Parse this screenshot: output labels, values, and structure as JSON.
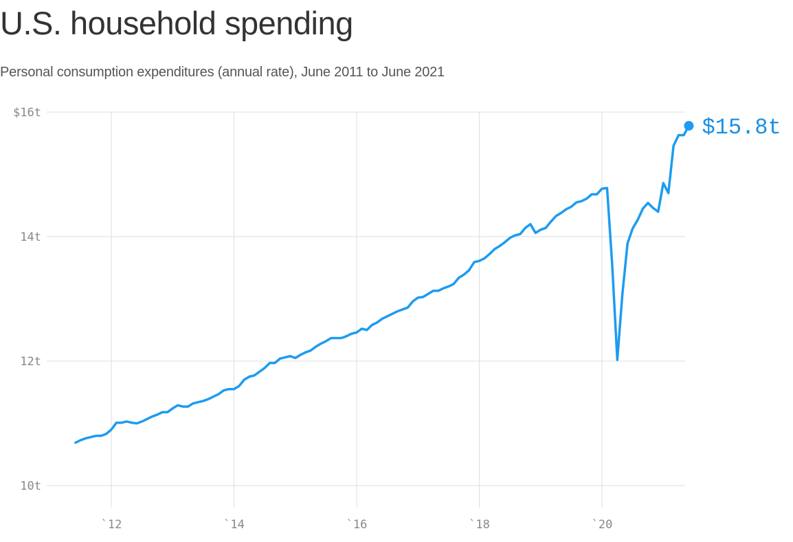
{
  "title": "U.S. household spending",
  "subtitle": "Personal consumption expenditures (annual rate), June 2011 to June 2021",
  "colors": {
    "line": "#1d9bf0",
    "label": "#1a8fe3",
    "grid": "#dddddd",
    "tick": "#888888"
  },
  "chart_data": {
    "type": "line",
    "title": "U.S. household spending",
    "subtitle": "Personal consumption expenditures (annual rate), June 2011 to June 2021",
    "xlabel": "",
    "ylabel": "",
    "xlim": [
      2011.45,
      2021.45
    ],
    "ylim": [
      10,
      16
    ],
    "grid": true,
    "y_ticks": [
      {
        "value": 10,
        "label": "10t"
      },
      {
        "value": 12,
        "label": "12t"
      },
      {
        "value": 14,
        "label": "14t"
      },
      {
        "value": 16,
        "label": "$16t"
      }
    ],
    "x_ticks": [
      {
        "value": 2012,
        "label": "`12"
      },
      {
        "value": 2014,
        "label": "`14"
      },
      {
        "value": 2016,
        "label": "`16"
      },
      {
        "value": 2018,
        "label": "`18"
      },
      {
        "value": 2020,
        "label": "`20"
      }
    ],
    "end_label": "$15.8t",
    "series": [
      {
        "points": [
          [
            "2011-06",
            10.69
          ],
          [
            "2011-07",
            10.73
          ],
          [
            "2011-08",
            10.76
          ],
          [
            "2011-09",
            10.78
          ],
          [
            "2011-10",
            10.8
          ],
          [
            "2011-11",
            10.8
          ],
          [
            "2011-12",
            10.83
          ],
          [
            "2012-01",
            10.9
          ],
          [
            "2012-02",
            11.01
          ],
          [
            "2012-03",
            11.01
          ],
          [
            "2012-04",
            11.03
          ],
          [
            "2012-05",
            11.01
          ],
          [
            "2012-06",
            11.0
          ],
          [
            "2012-07",
            11.03
          ],
          [
            "2012-08",
            11.07
          ],
          [
            "2012-09",
            11.11
          ],
          [
            "2012-10",
            11.14
          ],
          [
            "2012-11",
            11.18
          ],
          [
            "2012-12",
            11.18
          ],
          [
            "2013-01",
            11.24
          ],
          [
            "2013-02",
            11.29
          ],
          [
            "2013-03",
            11.27
          ],
          [
            "2013-04",
            11.27
          ],
          [
            "2013-05",
            11.32
          ],
          [
            "2013-06",
            11.34
          ],
          [
            "2013-07",
            11.36
          ],
          [
            "2013-08",
            11.39
          ],
          [
            "2013-09",
            11.43
          ],
          [
            "2013-10",
            11.47
          ],
          [
            "2013-11",
            11.53
          ],
          [
            "2013-12",
            11.55
          ],
          [
            "2014-01",
            11.55
          ],
          [
            "2014-02",
            11.6
          ],
          [
            "2014-03",
            11.7
          ],
          [
            "2014-04",
            11.75
          ],
          [
            "2014-05",
            11.77
          ],
          [
            "2014-06",
            11.83
          ],
          [
            "2014-07",
            11.89
          ],
          [
            "2014-08",
            11.97
          ],
          [
            "2014-09",
            11.97
          ],
          [
            "2014-10",
            12.04
          ],
          [
            "2014-11",
            12.06
          ],
          [
            "2014-12",
            12.08
          ],
          [
            "2015-01",
            12.05
          ],
          [
            "2015-02",
            12.1
          ],
          [
            "2015-03",
            12.14
          ],
          [
            "2015-04",
            12.17
          ],
          [
            "2015-05",
            12.23
          ],
          [
            "2015-06",
            12.28
          ],
          [
            "2015-07",
            12.32
          ],
          [
            "2015-08",
            12.37
          ],
          [
            "2015-09",
            12.37
          ],
          [
            "2015-10",
            12.37
          ],
          [
            "2015-11",
            12.4
          ],
          [
            "2015-12",
            12.44
          ],
          [
            "2016-01",
            12.46
          ],
          [
            "2016-02",
            12.52
          ],
          [
            "2016-03",
            12.5
          ],
          [
            "2016-04",
            12.58
          ],
          [
            "2016-05",
            12.62
          ],
          [
            "2016-06",
            12.68
          ],
          [
            "2016-07",
            12.72
          ],
          [
            "2016-08",
            12.76
          ],
          [
            "2016-09",
            12.8
          ],
          [
            "2016-10",
            12.83
          ],
          [
            "2016-11",
            12.86
          ],
          [
            "2016-12",
            12.96
          ],
          [
            "2017-01",
            13.02
          ],
          [
            "2017-02",
            13.03
          ],
          [
            "2017-03",
            13.08
          ],
          [
            "2017-04",
            13.13
          ],
          [
            "2017-05",
            13.13
          ],
          [
            "2017-06",
            13.17
          ],
          [
            "2017-07",
            13.2
          ],
          [
            "2017-08",
            13.24
          ],
          [
            "2017-09",
            13.34
          ],
          [
            "2017-10",
            13.39
          ],
          [
            "2017-11",
            13.46
          ],
          [
            "2017-12",
            13.59
          ],
          [
            "2018-01",
            13.61
          ],
          [
            "2018-02",
            13.65
          ],
          [
            "2018-03",
            13.72
          ],
          [
            "2018-04",
            13.8
          ],
          [
            "2018-05",
            13.85
          ],
          [
            "2018-06",
            13.91
          ],
          [
            "2018-07",
            13.98
          ],
          [
            "2018-08",
            14.02
          ],
          [
            "2018-09",
            14.04
          ],
          [
            "2018-10",
            14.14
          ],
          [
            "2018-11",
            14.2
          ],
          [
            "2018-12",
            14.06
          ],
          [
            "2019-01",
            14.11
          ],
          [
            "2019-02",
            14.14
          ],
          [
            "2019-03",
            14.24
          ],
          [
            "2019-04",
            14.33
          ],
          [
            "2019-05",
            14.38
          ],
          [
            "2019-06",
            14.44
          ],
          [
            "2019-07",
            14.48
          ],
          [
            "2019-08",
            14.55
          ],
          [
            "2019-09",
            14.57
          ],
          [
            "2019-10",
            14.61
          ],
          [
            "2019-11",
            14.68
          ],
          [
            "2019-12",
            14.68
          ],
          [
            "2020-01",
            14.77
          ],
          [
            "2020-02",
            14.78
          ],
          [
            "2020-03",
            13.55
          ],
          [
            "2020-04",
            12.02
          ],
          [
            "2020-05",
            13.08
          ],
          [
            "2020-06",
            13.89
          ],
          [
            "2020-07",
            14.13
          ],
          [
            "2020-08",
            14.27
          ],
          [
            "2020-09",
            14.45
          ],
          [
            "2020-10",
            14.54
          ],
          [
            "2020-11",
            14.46
          ],
          [
            "2020-12",
            14.4
          ],
          [
            "2021-01",
            14.86
          ],
          [
            "2021-02",
            14.7
          ],
          [
            "2021-03",
            15.46
          ],
          [
            "2021-04",
            15.63
          ],
          [
            "2021-05",
            15.63
          ],
          [
            "2021-06",
            15.78
          ]
        ]
      }
    ]
  }
}
